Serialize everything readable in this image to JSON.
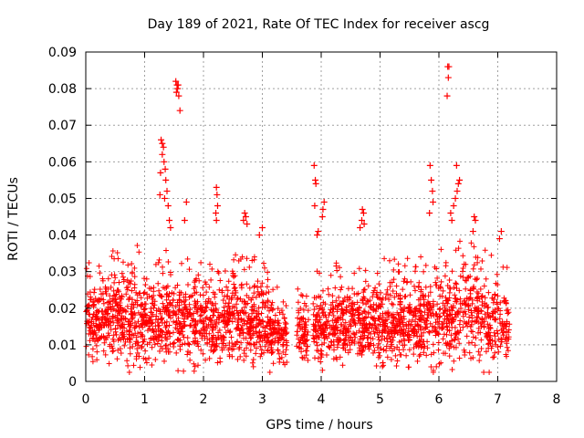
{
  "chart_data": {
    "type": "scatter",
    "title": "Day 189 of 2021, Rate Of TEC Index for receiver ascg",
    "xlabel": "GPS time / hours",
    "ylabel": "ROTI / TECUs",
    "xlim": [
      0,
      8
    ],
    "ylim": [
      0,
      0.09
    ],
    "grid": true,
    "marker": "+",
    "marker_color": "#ff0000",
    "x_ticks": [
      0,
      1,
      2,
      3,
      4,
      5,
      6,
      7,
      8
    ],
    "x_tick_labels": [
      "0",
      "1",
      "2",
      "3",
      "4",
      "5",
      "6",
      "7",
      "8"
    ],
    "y_ticks": [
      0,
      0.01,
      0.02,
      0.03,
      0.04,
      0.05,
      0.06,
      0.07,
      0.08,
      0.09
    ],
    "y_tick_labels": [
      "0",
      "0.01",
      "0.02",
      "0.03",
      "0.04",
      "0.05",
      "0.06",
      "0.07",
      "0.08",
      "0.09"
    ],
    "series": [
      {
        "name": "ROTI",
        "bulk": {
          "x_range": [
            0.0,
            7.2
          ],
          "approx_points": 2600,
          "gaps_hours": [
            [
              3.42,
              3.58
            ],
            [
              3.8,
              3.86
            ]
          ],
          "typical_envelope": [
            {
              "x": 0.0,
              "low": 0.006,
              "high": 0.03
            },
            {
              "x": 0.5,
              "low": 0.006,
              "high": 0.033
            },
            {
              "x": 1.0,
              "low": 0.005,
              "high": 0.033
            },
            {
              "x": 1.5,
              "low": 0.005,
              "high": 0.034
            },
            {
              "x": 2.0,
              "low": 0.005,
              "high": 0.03
            },
            {
              "x": 2.5,
              "low": 0.005,
              "high": 0.032
            },
            {
              "x": 3.0,
              "low": 0.004,
              "high": 0.03
            },
            {
              "x": 3.5,
              "low": 0.006,
              "high": 0.022
            },
            {
              "x": 4.0,
              "low": 0.006,
              "high": 0.028
            },
            {
              "x": 4.5,
              "low": 0.006,
              "high": 0.03
            },
            {
              "x": 5.0,
              "low": 0.005,
              "high": 0.03
            },
            {
              "x": 5.5,
              "low": 0.005,
              "high": 0.03
            },
            {
              "x": 6.0,
              "low": 0.004,
              "high": 0.034
            },
            {
              "x": 6.5,
              "low": 0.005,
              "high": 0.034
            },
            {
              "x": 7.0,
              "low": 0.006,
              "high": 0.03
            },
            {
              "x": 7.2,
              "low": 0.007,
              "high": 0.028
            }
          ]
        },
        "highlights": [
          {
            "x": 1.28,
            "y": 0.066
          },
          {
            "x": 1.3,
            "y": 0.065
          },
          {
            "x": 1.32,
            "y": 0.064
          },
          {
            "x": 1.3,
            "y": 0.062
          },
          {
            "x": 1.33,
            "y": 0.06
          },
          {
            "x": 1.35,
            "y": 0.058
          },
          {
            "x": 1.27,
            "y": 0.057
          },
          {
            "x": 1.36,
            "y": 0.055
          },
          {
            "x": 1.38,
            "y": 0.052
          },
          {
            "x": 1.34,
            "y": 0.05
          },
          {
            "x": 1.26,
            "y": 0.051
          },
          {
            "x": 1.4,
            "y": 0.048
          },
          {
            "x": 1.53,
            "y": 0.082
          },
          {
            "x": 1.55,
            "y": 0.081
          },
          {
            "x": 1.57,
            "y": 0.081
          },
          {
            "x": 1.56,
            "y": 0.08
          },
          {
            "x": 1.54,
            "y": 0.079
          },
          {
            "x": 1.58,
            "y": 0.078
          },
          {
            "x": 1.6,
            "y": 0.074
          },
          {
            "x": 1.42,
            "y": 0.044
          },
          {
            "x": 1.44,
            "y": 0.042
          },
          {
            "x": 1.71,
            "y": 0.049
          },
          {
            "x": 1.68,
            "y": 0.044
          },
          {
            "x": 2.22,
            "y": 0.053
          },
          {
            "x": 2.23,
            "y": 0.051
          },
          {
            "x": 2.24,
            "y": 0.048
          },
          {
            "x": 2.21,
            "y": 0.046
          },
          {
            "x": 2.22,
            "y": 0.044
          },
          {
            "x": 2.7,
            "y": 0.046
          },
          {
            "x": 2.72,
            "y": 0.045
          },
          {
            "x": 2.68,
            "y": 0.044
          },
          {
            "x": 2.74,
            "y": 0.043
          },
          {
            "x": 3.0,
            "y": 0.042
          },
          {
            "x": 2.95,
            "y": 0.04
          },
          {
            "x": 3.88,
            "y": 0.059
          },
          {
            "x": 3.9,
            "y": 0.055
          },
          {
            "x": 3.91,
            "y": 0.054
          },
          {
            "x": 3.89,
            "y": 0.048
          },
          {
            "x": 4.05,
            "y": 0.049
          },
          {
            "x": 4.03,
            "y": 0.047
          },
          {
            "x": 4.02,
            "y": 0.045
          },
          {
            "x": 3.95,
            "y": 0.041
          },
          {
            "x": 3.93,
            "y": 0.04
          },
          {
            "x": 4.7,
            "y": 0.047
          },
          {
            "x": 4.72,
            "y": 0.046
          },
          {
            "x": 4.69,
            "y": 0.044
          },
          {
            "x": 4.73,
            "y": 0.043
          },
          {
            "x": 4.66,
            "y": 0.042
          },
          {
            "x": 5.85,
            "y": 0.059
          },
          {
            "x": 5.87,
            "y": 0.055
          },
          {
            "x": 5.89,
            "y": 0.052
          },
          {
            "x": 5.9,
            "y": 0.049
          },
          {
            "x": 5.84,
            "y": 0.046
          },
          {
            "x": 6.15,
            "y": 0.086
          },
          {
            "x": 6.17,
            "y": 0.086
          },
          {
            "x": 6.16,
            "y": 0.083
          },
          {
            "x": 6.14,
            "y": 0.078
          },
          {
            "x": 6.3,
            "y": 0.059
          },
          {
            "x": 6.35,
            "y": 0.055
          },
          {
            "x": 6.33,
            "y": 0.054
          },
          {
            "x": 6.31,
            "y": 0.052
          },
          {
            "x": 6.28,
            "y": 0.05
          },
          {
            "x": 6.25,
            "y": 0.048
          },
          {
            "x": 6.2,
            "y": 0.046
          },
          {
            "x": 6.22,
            "y": 0.044
          },
          {
            "x": 6.6,
            "y": 0.045
          },
          {
            "x": 6.62,
            "y": 0.044
          },
          {
            "x": 6.58,
            "y": 0.041
          },
          {
            "x": 7.06,
            "y": 0.041
          },
          {
            "x": 7.03,
            "y": 0.039
          }
        ]
      }
    ]
  }
}
